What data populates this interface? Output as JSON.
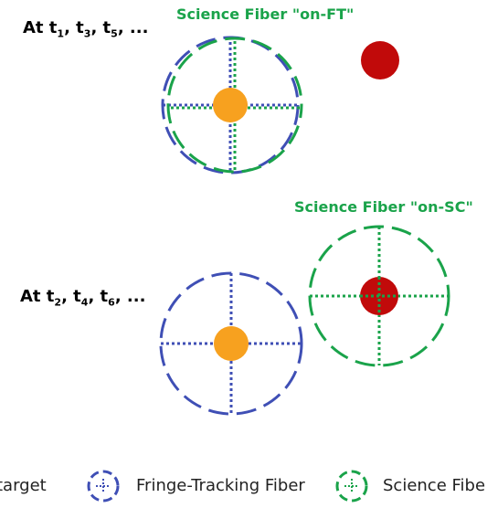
{
  "panel_top": {
    "time_label": "At t",
    "time_subs": [
      "1",
      "3",
      "5"
    ],
    "title": "Science Fiber \"on-FT\""
  },
  "panel_bottom": {
    "time_label": "At t",
    "time_subs": [
      "2",
      "4",
      "6"
    ],
    "title": "Science Fiber \"on-SC\""
  },
  "legend": {
    "item1": "target",
    "item2": "Fringe-Tracking Fiber",
    "item3": "Science Fibe"
  },
  "colors": {
    "fringe_tracking": "#3f4fb5",
    "science": "#1aa34a",
    "fringe_target": "#f7a11f",
    "science_target": "#c10a0a"
  },
  "icons": {
    "fringe_tracking": "dashed-crosshair-circle-icon",
    "science": "dashed-crosshair-circle-icon"
  }
}
